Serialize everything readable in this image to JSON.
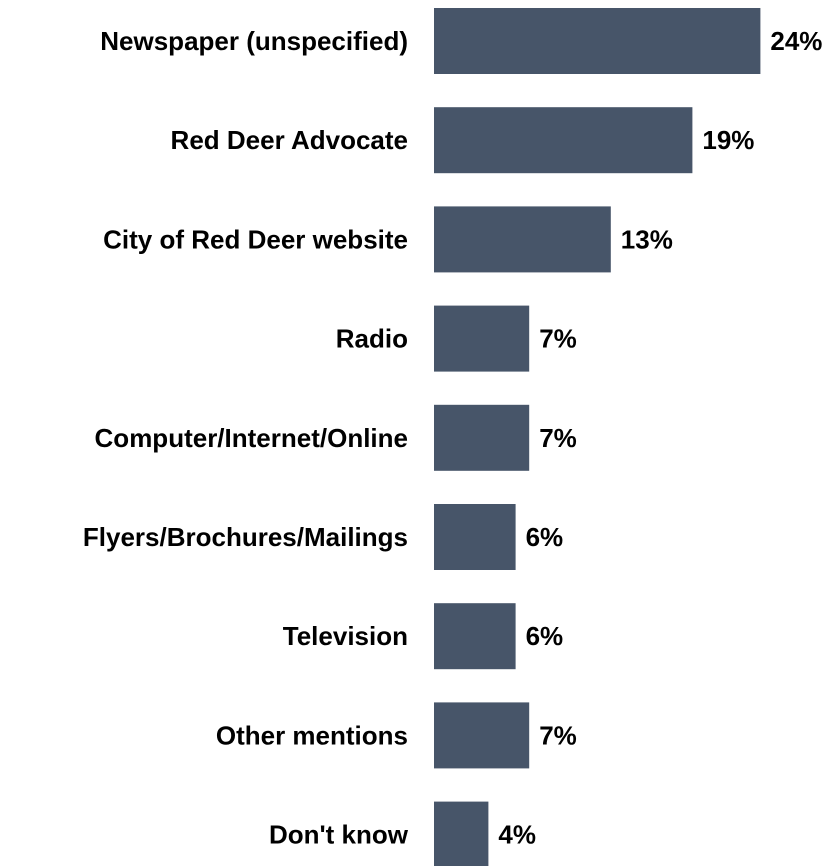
{
  "chart_data": {
    "type": "bar",
    "orientation": "horizontal",
    "categories": [
      "Newspaper (unspecified)",
      "Red Deer Advocate",
      "City of Red Deer website",
      "Radio",
      "Computer/Internet/Online",
      "Flyers/Brochures/Mailings",
      "Television",
      "Other mentions",
      "Don't know"
    ],
    "values": [
      24,
      19,
      13,
      7,
      7,
      6,
      6,
      7,
      4
    ],
    "value_labels": [
      "24%",
      "19%",
      "13%",
      "7%",
      "7%",
      "6%",
      "6%",
      "7%",
      "4%"
    ],
    "unit": "%",
    "xlim": [
      0,
      24
    ],
    "grid": false,
    "legend": "none",
    "bar_color": "#475569"
  }
}
